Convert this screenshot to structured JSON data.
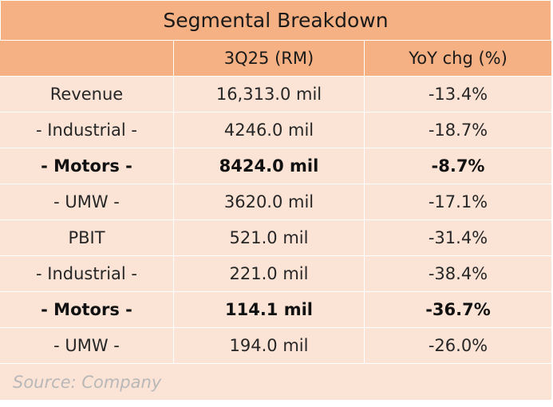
{
  "title": "Segmental Breakdown",
  "headers": [
    "",
    "3Q25 (RM)",
    "YoY chg (%)"
  ],
  "rows": [
    {
      "label": "Revenue",
      "value": "16,313.0 mil",
      "yoy": "-13.4%",
      "bold": false
    },
    {
      "label": "- Industrial -",
      "value": "4246.0 mil",
      "yoy": "-18.7%",
      "bold": false
    },
    {
      "label": "- Motors -",
      "value": "8424.0 mil",
      "yoy": "-8.7%",
      "bold": true
    },
    {
      "label": "- UMW -",
      "value": "3620.0 mil",
      "yoy": "-17.1%",
      "bold": false
    },
    {
      "label": "PBIT",
      "value": "521.0 mil",
      "yoy": "-31.4%",
      "bold": false
    },
    {
      "label": "- Industrial -",
      "value": "221.0 mil",
      "yoy": "-38.4%",
      "bold": false
    },
    {
      "label": "- Motors -",
      "value": "114.1 mil",
      "yoy": "-36.7%",
      "bold": true
    },
    {
      "label": "- UMW -",
      "value": "194.0 mil",
      "yoy": "-26.0%",
      "bold": false
    }
  ],
  "source": "Source: Company",
  "colors": {
    "header_bg": "#f5b183",
    "body_bg": "#fbe4d6",
    "source_text": "#b8b8b8"
  }
}
